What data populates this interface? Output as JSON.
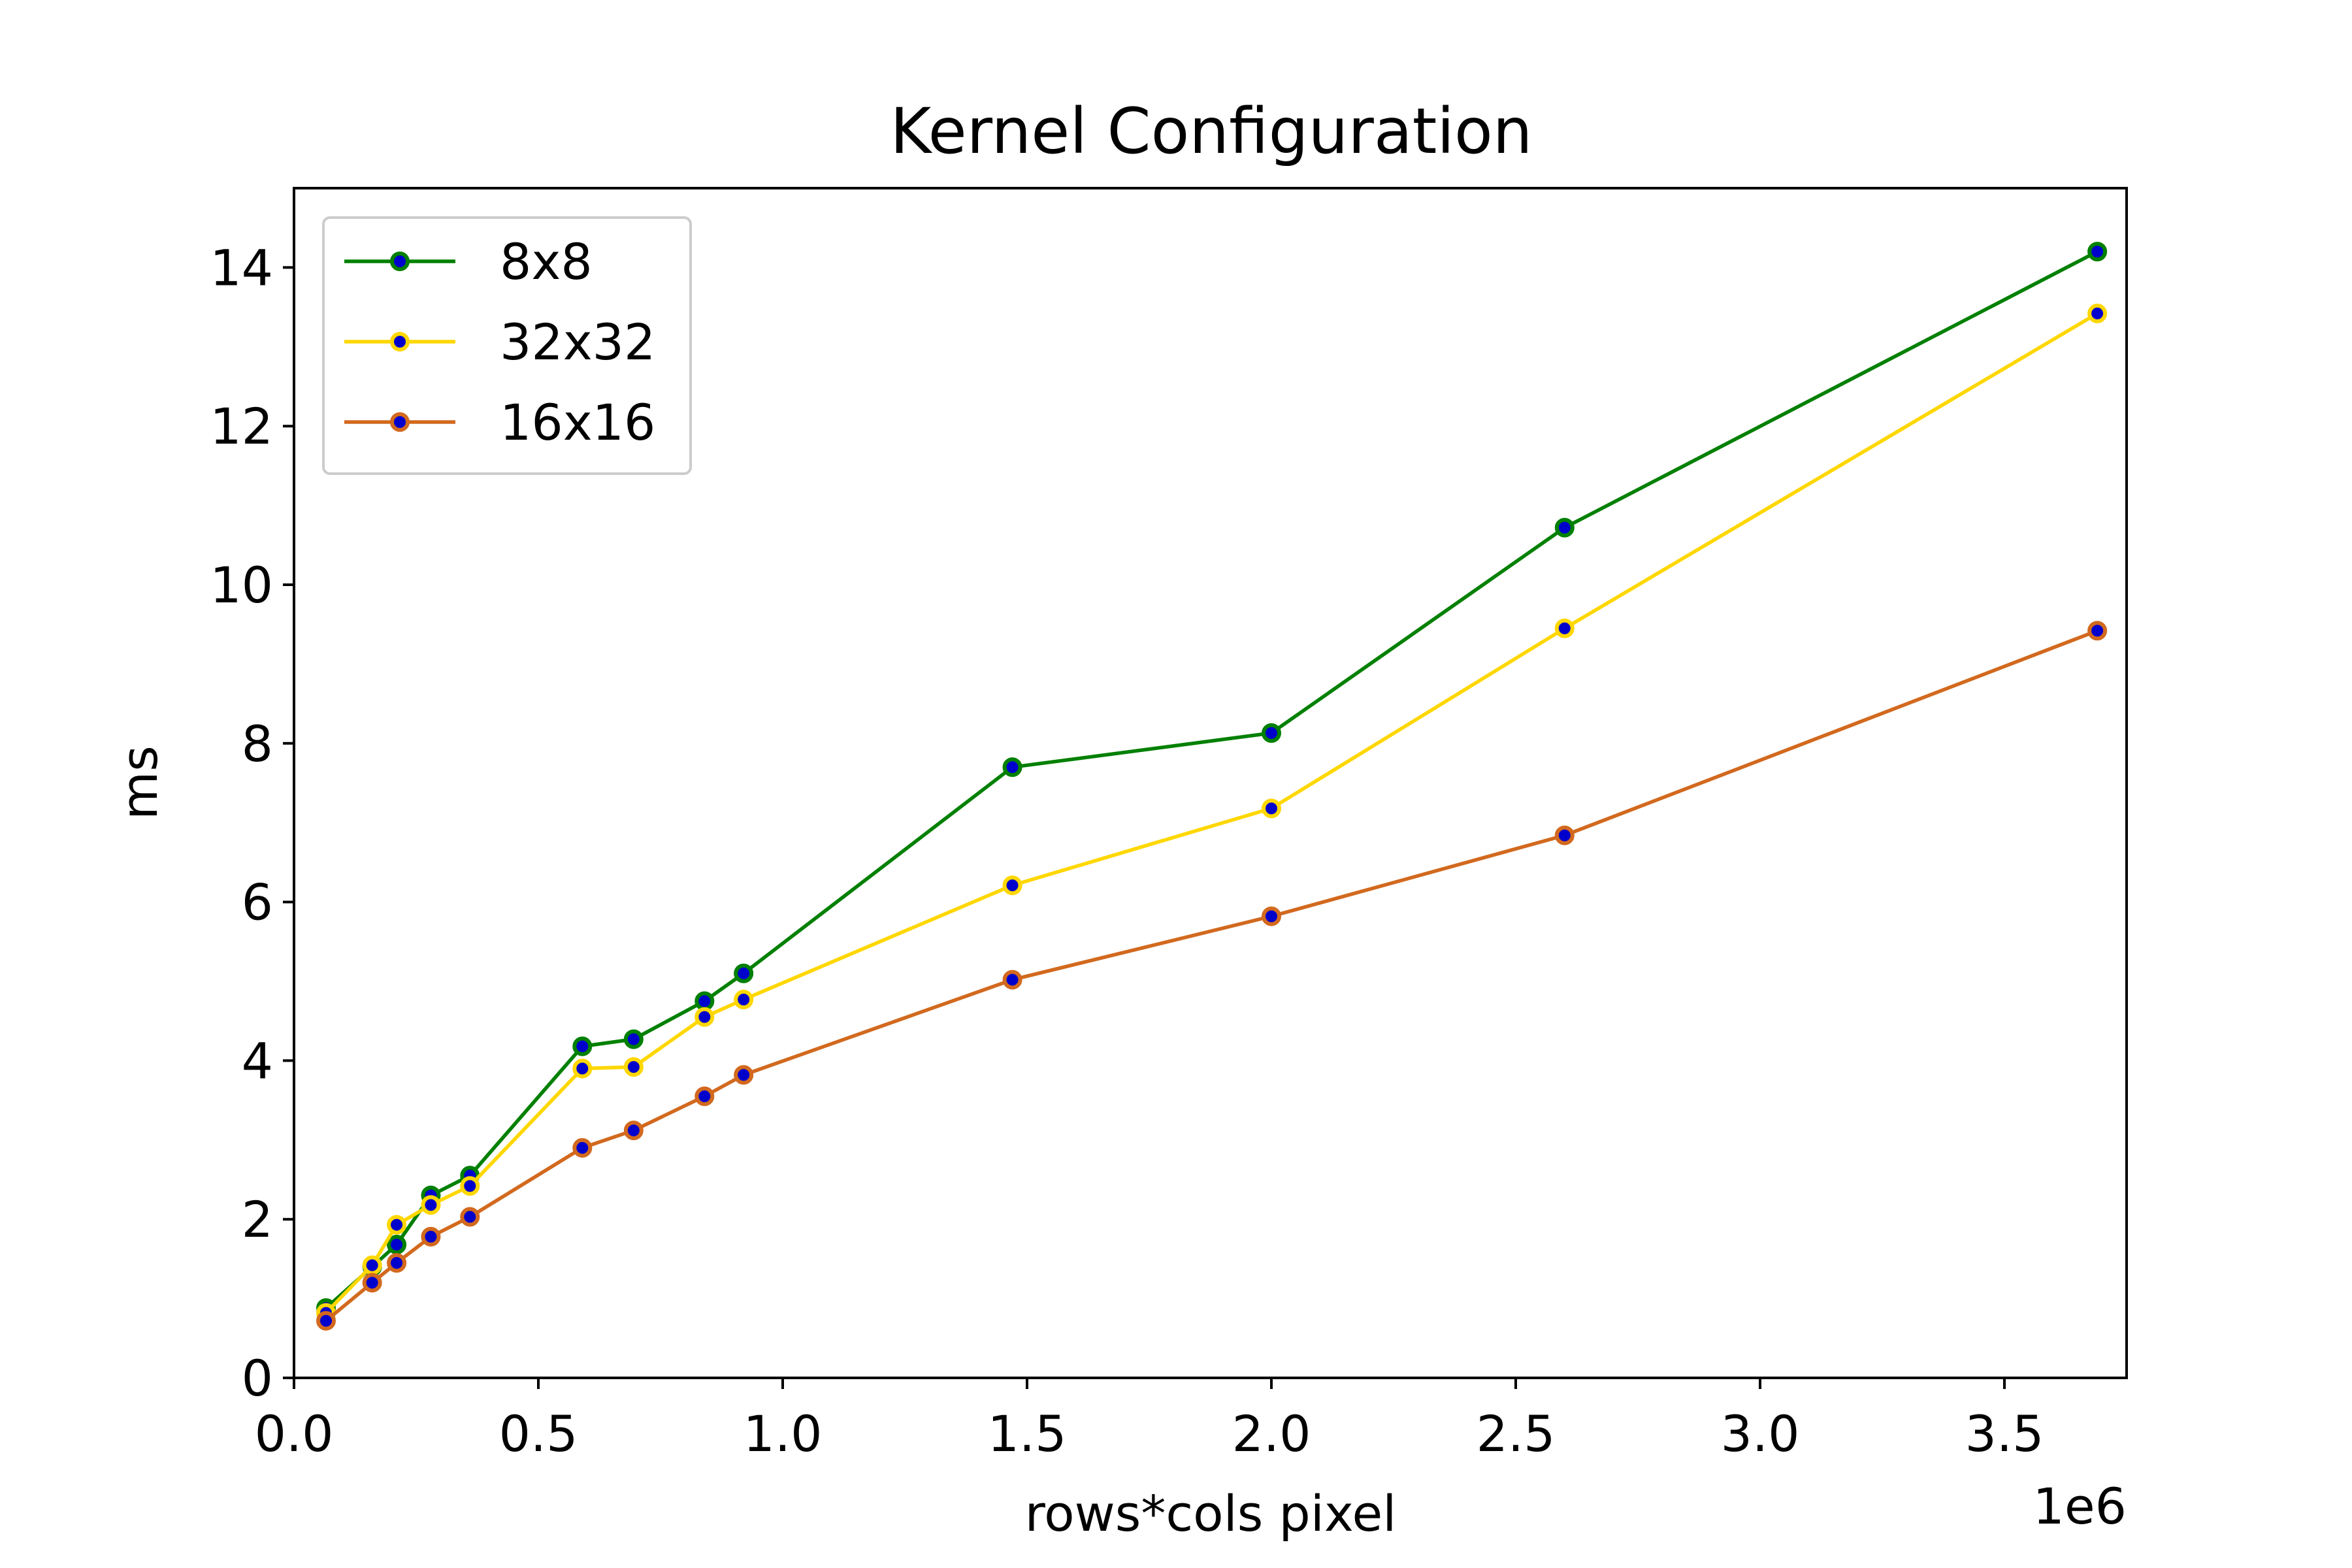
{
  "chart_data": {
    "type": "line",
    "title": "Kernel Configuration",
    "xlabel": "rows*cols pixel",
    "ylabel": "ms",
    "x_offset_label": "1e6",
    "xlim": [
      0,
      3750000
    ],
    "ylim": [
      0,
      15
    ],
    "xticks": [
      0,
      500000,
      1000000,
      1500000,
      2000000,
      2500000,
      3000000,
      3500000
    ],
    "xtick_labels": [
      "0.0",
      "0.5",
      "1.0",
      "1.5",
      "2.0",
      "2.5",
      "3.0",
      "3.5"
    ],
    "yticks": [
      0,
      2,
      4,
      6,
      8,
      10,
      12,
      14
    ],
    "ytick_labels": [
      "0",
      "2",
      "4",
      "6",
      "8",
      "10",
      "12",
      "14"
    ],
    "grid": false,
    "legend_position": "upper-left",
    "marker_face_color": "#0000cc",
    "x": [
      65536,
      160000,
      210000,
      280000,
      360000,
      590000,
      695000,
      840000,
      920000,
      1470000,
      2000000,
      2600000,
      3690000
    ],
    "series": [
      {
        "name": "8x8",
        "color": "#008000",
        "values": [
          0.88,
          1.4,
          1.68,
          2.3,
          2.55,
          4.18,
          4.27,
          4.75,
          5.1,
          7.7,
          8.13,
          10.72,
          14.2
        ]
      },
      {
        "name": "32x32",
        "color": "#ffd700",
        "values": [
          0.82,
          1.42,
          1.93,
          2.18,
          2.42,
          3.9,
          3.92,
          4.55,
          4.77,
          6.21,
          7.18,
          9.45,
          13.42
        ]
      },
      {
        "name": "16x16",
        "color": "#d2691e",
        "values": [
          0.72,
          1.2,
          1.45,
          1.78,
          2.03,
          2.9,
          3.12,
          3.55,
          3.82,
          5.02,
          5.82,
          6.84,
          9.42
        ]
      }
    ]
  }
}
